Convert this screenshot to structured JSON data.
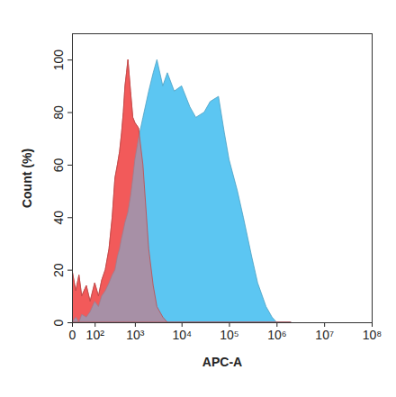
{
  "chart_data": {
    "type": "area",
    "x_label": "APC-A",
    "y_label": "Count (%)",
    "log": "x",
    "grid": false,
    "x": [
      0,
      10,
      20,
      30,
      50,
      70,
      100,
      130,
      160,
      200,
      250,
      300,
      350,
      400,
      450,
      500,
      550,
      600,
      650,
      700,
      800,
      900,
      1000,
      1200,
      1500,
      2000,
      2500,
      3000,
      4000,
      5000,
      7000,
      10000,
      15000,
      20000,
      30000,
      40000,
      60000,
      80000,
      100000,
      150000,
      200000,
      300000,
      400000,
      600000,
      800000,
      1000000,
      2000000
    ],
    "series": [
      {
        "color": "#f25a5a",
        "values": [
          20,
          12,
          18,
          10,
          14,
          8,
          15,
          10,
          16,
          20,
          28,
          40,
          55,
          60,
          65,
          72,
          80,
          90,
          95,
          100,
          88,
          78,
          76,
          74,
          60,
          28,
          14,
          6,
          2,
          0,
          0,
          0,
          0,
          0,
          0,
          0,
          0,
          0,
          0,
          0,
          0,
          0,
          0,
          0,
          0,
          0,
          0
        ]
      },
      {
        "color": "#5cc6f2",
        "values": [
          0,
          2,
          0,
          3,
          2,
          4,
          8,
          6,
          10,
          12,
          15,
          18,
          20,
          25,
          28,
          32,
          35,
          38,
          40,
          42,
          48,
          55,
          62,
          70,
          78,
          88,
          95,
          100,
          90,
          95,
          88,
          90,
          82,
          78,
          80,
          84,
          86,
          72,
          62,
          50,
          40,
          25,
          15,
          6,
          2,
          0,
          0
        ]
      }
    ],
    "xlim": [
      0,
      100000000
    ],
    "xticks": [
      0,
      {
        "value": 100,
        "label": "10²"
      },
      {
        "value": 1000,
        "label": "10³"
      },
      {
        "value": 10000,
        "label": "10⁴"
      },
      {
        "value": 100000,
        "label": "10⁵"
      },
      {
        "value": 1000000,
        "label": "10⁶"
      },
      {
        "value": 10000000,
        "label": "10⁷"
      },
      {
        "value": 100000000,
        "label": "10⁸"
      }
    ],
    "ylim": [
      0,
      110
    ],
    "yticks": [
      0,
      20,
      40,
      60,
      80,
      100
    ]
  }
}
